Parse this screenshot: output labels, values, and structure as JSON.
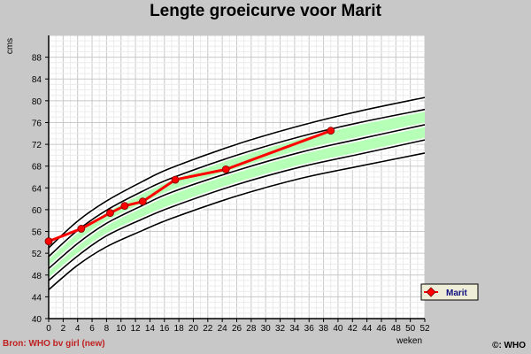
{
  "chart_data": {
    "type": "line",
    "title": "Lengte groeicurve voor Marit",
    "xlabel": "weken",
    "ylabel": "cms",
    "xlim": [
      0,
      52
    ],
    "ylim": [
      40,
      92
    ],
    "x_ticks": [
      0,
      2,
      4,
      6,
      8,
      10,
      12,
      14,
      16,
      18,
      20,
      22,
      24,
      26,
      28,
      30,
      32,
      34,
      36,
      38,
      40,
      42,
      44,
      46,
      48,
      50,
      52
    ],
    "y_ticks": [
      40,
      44,
      48,
      52,
      56,
      60,
      64,
      68,
      72,
      76,
      80,
      84,
      88
    ],
    "grid": true,
    "legend_position": "right",
    "reference_curves": {
      "x": [
        0,
        4,
        8,
        13,
        17,
        26,
        35,
        43,
        52
      ],
      "p3": [
        45.3,
        49.8,
        53.2,
        56.2,
        58.4,
        62.5,
        65.8,
        68.0,
        70.4
      ],
      "p10": [
        47.0,
        51.5,
        55.2,
        58.3,
        60.5,
        64.6,
        67.9,
        70.2,
        72.8
      ],
      "p50": [
        49.2,
        53.8,
        57.5,
        60.8,
        63.2,
        67.2,
        70.6,
        73.0,
        75.6
      ],
      "p90": [
        51.4,
        56.2,
        59.9,
        63.4,
        65.8,
        70.0,
        73.5,
        76.0,
        78.4
      ],
      "p97": [
        53.0,
        57.9,
        61.6,
        65.2,
        67.7,
        72.0,
        75.5,
        78.1,
        80.6
      ]
    },
    "series": [
      {
        "name": "Marit",
        "x": [
          0,
          4.5,
          8.5,
          10.5,
          13,
          17.5,
          24.5,
          39
        ],
        "values": [
          54.2,
          56.5,
          59.4,
          60.7,
          61.5,
          65.5,
          67.4,
          74.5
        ]
      }
    ],
    "colors": {
      "series": "#ff0000",
      "band_fill": "#b6ffb6",
      "plot_bg": "#ffffff",
      "frame_bg": "#c8c8c8"
    },
    "source_text": "Bron: WHO bv girl (new)",
    "copyright_text": "©: WHO"
  }
}
